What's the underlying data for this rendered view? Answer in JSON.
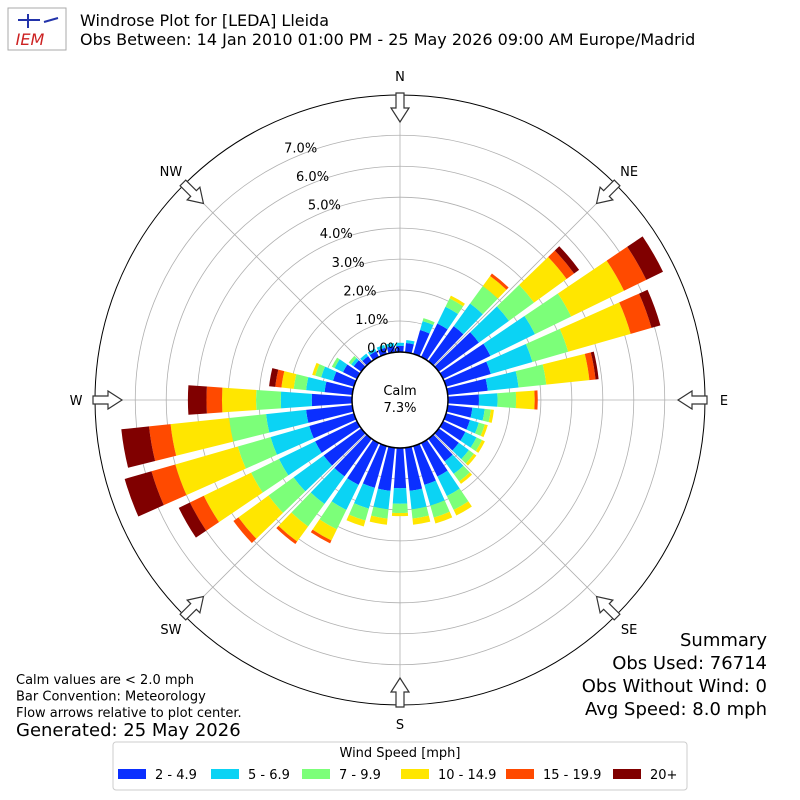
{
  "chart_data": {
    "type": "windrose",
    "logo_text": "IEM",
    "title": "Windrose Plot for [LEDA] Lleida",
    "subtitle": "Obs Between: 14 Jan 2010 01:00 PM - 25 May 2026 09:00 AM Europe/Madrid",
    "x": [
      0,
      10,
      20,
      30,
      40,
      50,
      60,
      70,
      80,
      90,
      100,
      110,
      120,
      130,
      140,
      150,
      160,
      170,
      180,
      190,
      200,
      210,
      220,
      230,
      240,
      250,
      260,
      270,
      280,
      290,
      300,
      310,
      320,
      330,
      340,
      350
    ],
    "angle_labels": [
      {
        "value": 0,
        "label": "N"
      },
      {
        "value": 45,
        "label": "NE"
      },
      {
        "value": 90,
        "label": "E"
      },
      {
        "value": 135,
        "label": "SE"
      },
      {
        "value": 180,
        "label": "S"
      },
      {
        "value": 225,
        "label": "SW"
      },
      {
        "value": 270,
        "label": "W"
      },
      {
        "value": 315,
        "label": "NW"
      }
    ],
    "rlim": [
      0,
      8.3
    ],
    "rticks": [
      {
        "value": 0,
        "label": "0.0%"
      },
      {
        "value": 1,
        "label": "1.0%"
      },
      {
        "value": 2,
        "label": "2.0%"
      },
      {
        "value": 3,
        "label": "3.0%"
      },
      {
        "value": 4,
        "label": "4.0%"
      },
      {
        "value": 5,
        "label": "5.0%"
      },
      {
        "value": 6,
        "label": "6.0%"
      },
      {
        "value": 7,
        "label": "7.0%"
      }
    ],
    "grid": true,
    "calm": {
      "label": "Calm",
      "value_label": "7.3%"
    },
    "legend_title": "Wind Speed [mph]",
    "series": [
      {
        "name": "2 - 4.9",
        "color": "#0b2fff",
        "values": [
          0.2,
          0.3,
          0.8,
          1.2,
          1.4,
          1.6,
          1.7,
          1.5,
          1.3,
          1.0,
          0.8,
          0.8,
          0.8,
          0.8,
          0.9,
          1.2,
          1.3,
          1.4,
          1.3,
          1.4,
          1.4,
          1.5,
          1.5,
          1.5,
          1.5,
          1.5,
          1.5,
          1.3,
          0.9,
          0.7,
          0.5,
          0.3,
          0.2,
          0.2,
          0.2,
          0.2
        ]
      },
      {
        "name": "5 - 6.9",
        "color": "#0bd3f4",
        "values": [
          0.1,
          0.1,
          0.3,
          0.6,
          0.9,
          1.2,
          1.6,
          1.4,
          1.0,
          0.6,
          0.4,
          0.3,
          0.4,
          0.4,
          0.5,
          0.7,
          0.7,
          0.6,
          0.5,
          0.6,
          0.7,
          0.9,
          1.1,
          1.2,
          1.3,
          1.3,
          1.3,
          1.0,
          0.6,
          0.4,
          0.3,
          0.1,
          0.1,
          0.1,
          0.1,
          0.1
        ]
      },
      {
        "name": "7 - 9.9",
        "color": "#7cff79",
        "values": [
          0,
          0,
          0.1,
          0.3,
          0.7,
          1.0,
          1.3,
          1.2,
          0.9,
          0.6,
          0.2,
          0.2,
          0.2,
          0.2,
          0.3,
          0.5,
          0.4,
          0.3,
          0.3,
          0.3,
          0.4,
          0.7,
          0.9,
          1.0,
          1.0,
          1.1,
          1.2,
          0.8,
          0.4,
          0.2,
          0.1,
          0.1,
          0,
          0,
          0,
          0
        ]
      },
      {
        "name": "10 - 14.9",
        "color": "#ffe600",
        "values": [
          0,
          0,
          0,
          0.1,
          0.4,
          1.3,
          1.9,
          2.1,
          1.4,
          0.6,
          0.1,
          0.1,
          0.1,
          0.1,
          0.1,
          0.2,
          0.2,
          0.2,
          0.1,
          0.2,
          0.2,
          0.4,
          0.6,
          1.2,
          1.7,
          2.1,
          1.9,
          1.1,
          0.4,
          0.1,
          0,
          0,
          0,
          0,
          0,
          0
        ]
      },
      {
        "name": "15 - 19.9",
        "color": "#ff4a00",
        "values": [
          0,
          0,
          0,
          0,
          0.1,
          0.3,
          0.8,
          0.7,
          0.2,
          0.1,
          0,
          0,
          0,
          0,
          0,
          0,
          0,
          0,
          0,
          0,
          0,
          0.1,
          0.1,
          0.2,
          0.5,
          0.8,
          0.7,
          0.5,
          0.2,
          0,
          0,
          0,
          0,
          0,
          0,
          0
        ]
      },
      {
        "name": "20+",
        "color": "#800000",
        "values": [
          0,
          0,
          0,
          0,
          0,
          0.2,
          0.6,
          0.3,
          0.1,
          0,
          0,
          0,
          0,
          0,
          0,
          0,
          0,
          0,
          0,
          0,
          0,
          0,
          0,
          0,
          0.4,
          0.9,
          0.9,
          0.6,
          0.2,
          0,
          0,
          0,
          0,
          0,
          0,
          0
        ]
      }
    ],
    "summary": [
      "Summary",
      "Obs Used: 76714",
      "Obs Without Wind: 0",
      "Avg Speed: 8.0 mph"
    ],
    "notes": [
      "Calm values are < 2.0 mph",
      "Bar Convention: Meteorology",
      "Flow arrows relative to plot center."
    ],
    "generated": "Generated: 25 May 2026"
  }
}
